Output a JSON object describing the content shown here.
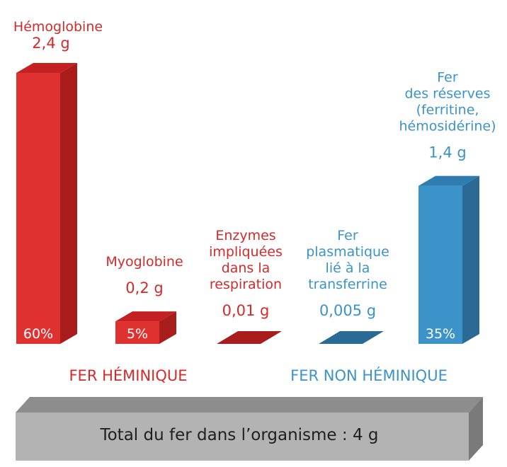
{
  "colors": {
    "heme_front": "#e03131",
    "heme_side": "#a81c1c",
    "heme_top": "#c42222",
    "heme_text": "#d42a2a",
    "nonheme_front": "#3b93c9",
    "nonheme_side": "#2a6a94",
    "nonheme_top": "#2f7db0",
    "nonheme_text": "#3b93c9",
    "base_front": "#b3b3b3",
    "base_top": "#8d8d8d",
    "base_side": "#7a7a7a",
    "white": "#ffffff",
    "dark_text": "#1f1f1f"
  },
  "chart_data": {
    "type": "bar",
    "unit": "g",
    "categories": [
      "Hémoglobine",
      "Myoglobine",
      "Enzymes impliquées dans la respiration",
      "Fer plasmatique lié à la transferrine",
      "Fer des réserves (ferritine, hémosidérine)"
    ],
    "label_lines": [
      [
        "Hémoglobine"
      ],
      [
        "Myoglobine"
      ],
      [
        "Enzymes",
        "impliquées",
        "dans la",
        "respiration"
      ],
      [
        "Fer",
        "plasmatique",
        "lié à la",
        "transferrine"
      ],
      [
        "Fer",
        "des réserves",
        "(ferritine,",
        "hémosidérine)"
      ]
    ],
    "values": [
      2.4,
      0.2,
      0.01,
      0.005,
      1.4
    ],
    "value_labels": [
      "2,4 g",
      "0,2 g",
      "0,01 g",
      "0,005 g",
      "1,4 g"
    ],
    "percent_labels": [
      "60%",
      "5%",
      "",
      "",
      "35%"
    ],
    "groups": [
      "heme",
      "heme",
      "heme",
      "nonheme",
      "nonheme"
    ],
    "group_labels": {
      "heme": "FER HÉMINIQUE",
      "nonheme": "FER NON HÉMINIQUE"
    },
    "total_label": "Total du fer dans l’organisme : 4 g",
    "total": 4,
    "ylim": [
      0,
      2.4
    ]
  }
}
